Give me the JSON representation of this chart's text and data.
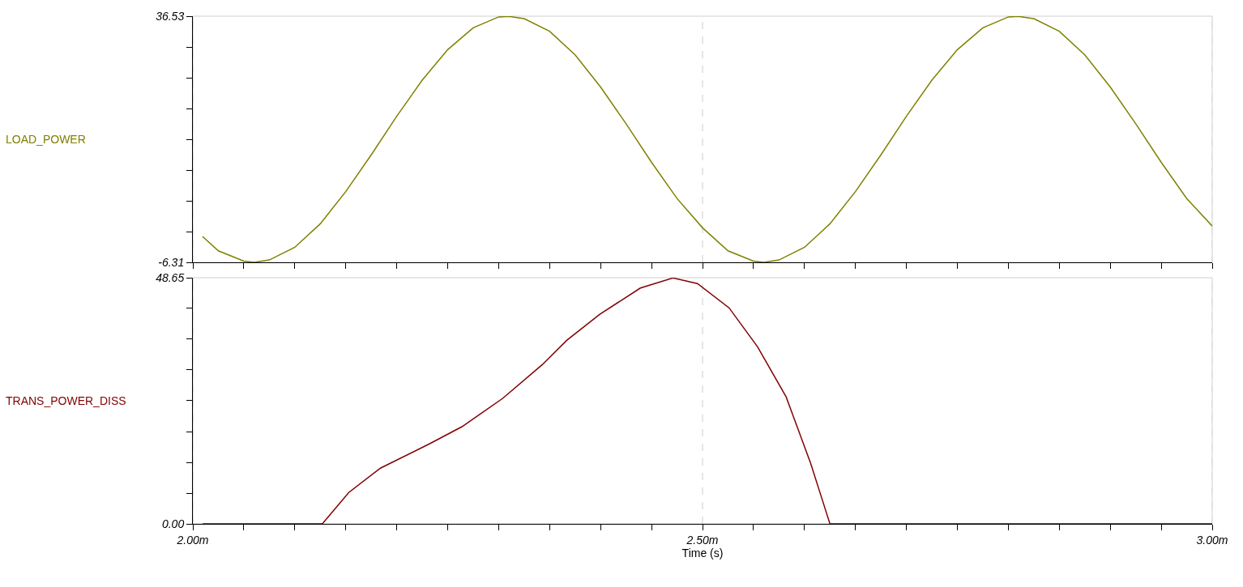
{
  "chart_data": [
    {
      "type": "line",
      "tick_labels": "y",
      "legend": false,
      "grid": "x",
      "xlim": [
        2,
        3
      ],
      "xticks": [
        2,
        {
          "value": 2.05,
          "label": null
        },
        {
          "value": 2.1,
          "label": null
        },
        {
          "value": 2.15,
          "label": null
        },
        {
          "value": 2.2,
          "label": null
        },
        {
          "value": 2.25,
          "label": null
        },
        {
          "value": 2.3,
          "label": null
        },
        {
          "value": 2.35,
          "label": null
        },
        {
          "value": 2.4,
          "label": null
        },
        {
          "value": 2.45,
          "label": null
        },
        2.5,
        {
          "value": 2.55,
          "label": null
        },
        {
          "value": 2.6,
          "label": null
        },
        {
          "value": 2.65,
          "label": null
        },
        {
          "value": 2.7,
          "label": null
        },
        {
          "value": 2.75,
          "label": null
        },
        {
          "value": 2.8,
          "label": null
        },
        {
          "value": 2.85,
          "label": null
        },
        {
          "value": 2.9,
          "label": null
        },
        {
          "value": 2.95,
          "label": null
        },
        3
      ],
      "ylim": [
        -6.31,
        36.53
      ],
      "yticks": [
        -6.31,
        {
          "value": -0.955,
          "label": null
        },
        {
          "value": 4.4,
          "label": null
        },
        {
          "value": 9.755,
          "label": null
        },
        {
          "value": 15.11,
          "label": null
        },
        {
          "value": 20.465,
          "label": null
        },
        {
          "value": 25.82,
          "label": null
        },
        {
          "value": 31.175,
          "label": null
        },
        36.53
      ],
      "series": [
        {
          "name": "LOAD_POWER",
          "color": "#808000",
          "x": [
            2.0095,
            2.025,
            2.05,
            2.06,
            2.075,
            2.1,
            2.125,
            2.15,
            2.175,
            2.2,
            2.225,
            2.25,
            2.275,
            2.3,
            2.31,
            2.325,
            2.35,
            2.375,
            2.4,
            2.425,
            2.45,
            2.475,
            2.5,
            2.525,
            2.55,
            2.56,
            2.575,
            2.6,
            2.625,
            2.65,
            2.675,
            2.7,
            2.725,
            2.75,
            2.775,
            2.8,
            2.81,
            2.825,
            2.85,
            2.875,
            2.9,
            2.925,
            2.95,
            2.975,
            3
          ],
          "values": [
            -1.8,
            -4.3,
            -6.1,
            -6.3,
            -5.9,
            -3.7,
            0.4,
            6.0,
            12.4,
            19.1,
            25.4,
            30.7,
            34.5,
            36.4,
            36.5,
            36.1,
            33.9,
            29.8,
            24.2,
            17.8,
            11.1,
            4.8,
            -0.3,
            -4.3,
            -6.1,
            -6.3,
            -5.9,
            -3.7,
            0.4,
            6.0,
            12.4,
            19.1,
            25.4,
            30.7,
            34.5,
            36.4,
            36.5,
            36.1,
            33.9,
            29.8,
            24.2,
            17.8,
            11.1,
            4.8,
            0.0
          ]
        }
      ]
    },
    {
      "type": "line",
      "legend": false,
      "grid": "x",
      "xlabel": "Time (s)",
      "xlim": [
        2,
        3
      ],
      "xticks": [
        {
          "value": 2,
          "label": "2.00m"
        },
        {
          "value": 2.05,
          "label": null
        },
        {
          "value": 2.1,
          "label": null
        },
        {
          "value": 2.15,
          "label": null
        },
        {
          "value": 2.2,
          "label": null
        },
        {
          "value": 2.25,
          "label": null
        },
        {
          "value": 2.3,
          "label": null
        },
        {
          "value": 2.35,
          "label": null
        },
        {
          "value": 2.4,
          "label": null
        },
        {
          "value": 2.45,
          "label": null
        },
        {
          "value": 2.5,
          "label": "2.50m"
        },
        {
          "value": 2.55,
          "label": null
        },
        {
          "value": 2.6,
          "label": null
        },
        {
          "value": 2.65,
          "label": null
        },
        {
          "value": 2.7,
          "label": null
        },
        {
          "value": 2.75,
          "label": null
        },
        {
          "value": 2.8,
          "label": null
        },
        {
          "value": 2.85,
          "label": null
        },
        {
          "value": 2.9,
          "label": null
        },
        {
          "value": 2.95,
          "label": null
        },
        {
          "value": 3,
          "label": "3.00m"
        }
      ],
      "ylim": [
        0,
        48.65
      ],
      "yticks": [
        {
          "value": 0,
          "label": "0.00"
        },
        {
          "value": 6.08,
          "label": null
        },
        {
          "value": 12.16,
          "label": null
        },
        {
          "value": 18.24,
          "label": null
        },
        {
          "value": 24.33,
          "label": null
        },
        {
          "value": 30.41,
          "label": null
        },
        {
          "value": 36.49,
          "label": null
        },
        {
          "value": 42.57,
          "label": null
        },
        48.65
      ],
      "series": [
        {
          "name": "TRANS_POWER_DISS",
          "color": "#800000",
          "x": [
            2.0095,
            2.127,
            2.153,
            2.184,
            2.232,
            2.264,
            2.304,
            2.343,
            2.367,
            2.399,
            2.439,
            2.471,
            2.495,
            2.526,
            2.554,
            2.582,
            2.606,
            2.625,
            3
          ],
          "values": [
            0,
            0,
            6.2,
            11.0,
            15.8,
            19.2,
            24.8,
            31.5,
            36.3,
            41.4,
            46.6,
            48.6,
            47.5,
            42.7,
            35.0,
            25.1,
            12.0,
            0,
            0
          ]
        }
      ]
    }
  ]
}
